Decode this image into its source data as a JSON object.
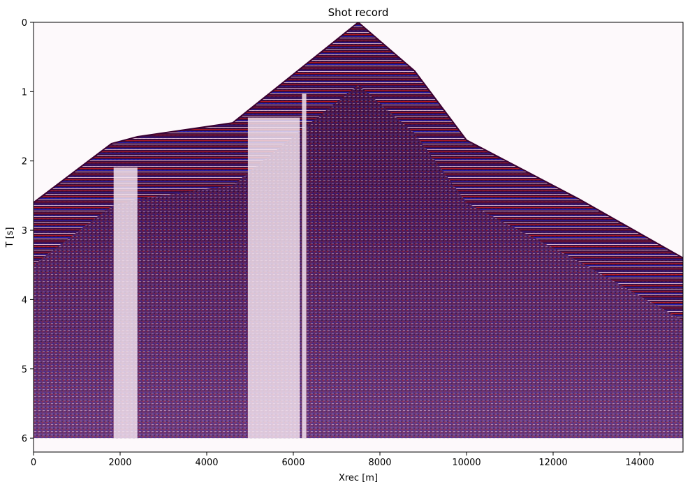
{
  "chart_data": {
    "type": "heatmap",
    "title": "Shot record",
    "xlabel": "Xrec [m]",
    "ylabel": "T [s]",
    "xlim": [
      0,
      15000
    ],
    "ylim": [
      6.2,
      0
    ],
    "x_ticks": [
      0,
      2000,
      4000,
      6000,
      8000,
      10000,
      12000,
      14000
    ],
    "x_tick_labels": [
      "0",
      "2000",
      "4000",
      "6000",
      "8000",
      "10000",
      "12000",
      "14000"
    ],
    "y_ticks": [
      0,
      1,
      2,
      3,
      4,
      5,
      6
    ],
    "y_tick_labels": [
      "0",
      "1",
      "2",
      "3",
      "4",
      "5",
      "6"
    ],
    "colormap": "seismic",
    "colors": {
      "negative": "#0000ff",
      "zero": "#ffffff",
      "positive": "#ff0000",
      "dark": "#3a0030"
    },
    "source_position_m": 7500,
    "record_length_s": 6.0,
    "first_arrival": [
      {
        "x": 0,
        "t": 2.6
      },
      {
        "x": 1800,
        "t": 1.75
      },
      {
        "x": 2400,
        "t": 1.65
      },
      {
        "x": 4600,
        "t": 1.45
      },
      {
        "x": 6400,
        "t": 0.55
      },
      {
        "x": 7500,
        "t": 0.0
      },
      {
        "x": 8800,
        "t": 0.7
      },
      {
        "x": 10000,
        "t": 1.7
      },
      {
        "x": 12600,
        "t": 2.55
      },
      {
        "x": 15000,
        "t": 3.4
      }
    ],
    "low_amplitude_bands": [
      {
        "x_from": 1850,
        "x_to": 2400
      },
      {
        "x_from": 4950,
        "x_to": 6150
      },
      {
        "x_from": 6200,
        "x_to": 6300
      }
    ],
    "grid": false
  }
}
